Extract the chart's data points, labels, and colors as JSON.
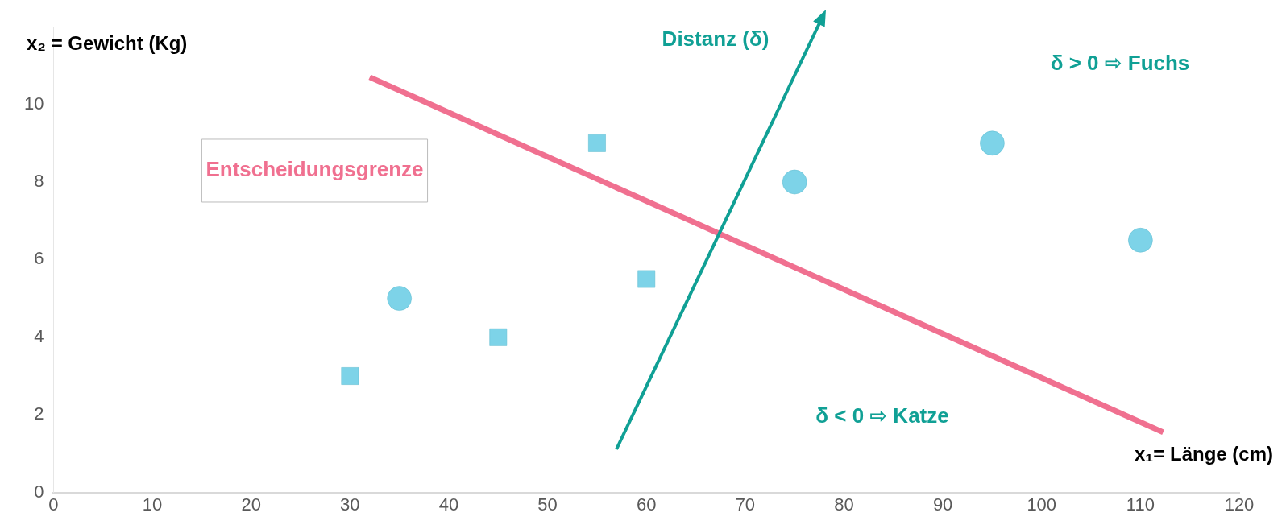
{
  "chart_data": {
    "type": "scatter",
    "xlabel": "x₁= Länge (cm)",
    "ylabel": "x₂ = Gewicht (Kg)",
    "xlim": [
      0,
      120
    ],
    "xticks": [
      0,
      10,
      20,
      30,
      40,
      50,
      60,
      70,
      80,
      90,
      100,
      110,
      120
    ],
    "ylim": [
      0,
      12
    ],
    "yticks": [
      0,
      2,
      4,
      6,
      8,
      10
    ],
    "grid": false,
    "legend": "top left",
    "series": [
      {
        "marker": "square",
        "color": "#7dd3e8",
        "x": [
          30,
          45,
          55,
          60
        ],
        "values": [
          3,
          4,
          9,
          5.5
        ]
      },
      {
        "marker": "circle",
        "color": "#7dd3e8",
        "x": [
          35,
          75,
          95,
          110
        ],
        "values": [
          5,
          8,
          9,
          6.5
        ]
      },
      {
        "type": "line",
        "name": "Entscheidungsgrenze",
        "marker": "none",
        "color": "#f07090",
        "x": [
          32,
          112.3
        ],
        "values": [
          10.7,
          1.55
        ]
      }
    ],
    "annotations": [
      "Distanz (δ)",
      "δ > 0 ⇨ Fuchs",
      "δ < 0 ⇨ Katze"
    ]
  }
}
